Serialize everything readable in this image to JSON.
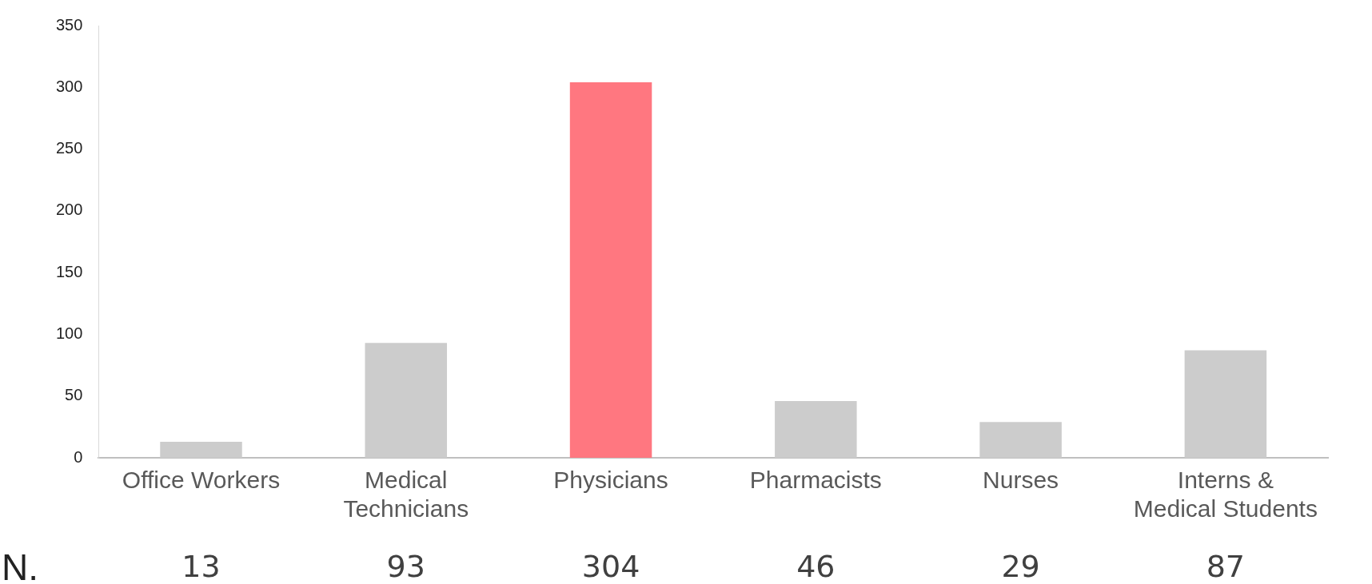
{
  "chart_data": {
    "type": "bar",
    "categories": [
      "Office Workers",
      "Medical Technicians",
      "Physicians",
      "Pharmacists",
      "Nurses",
      "Interns & Medical Students"
    ],
    "values": [
      13,
      93,
      304,
      46,
      29,
      87
    ],
    "colors": [
      "#cccccc",
      "#cccccc",
      "#ff7780",
      "#cccccc",
      "#cccccc",
      "#cccccc"
    ],
    "ylim": [
      0,
      350
    ],
    "yticks": [
      0,
      50,
      100,
      150,
      200,
      250,
      300,
      350
    ],
    "grid": false,
    "legend": false,
    "data_labels": true,
    "annotations": [
      "N."
    ]
  }
}
